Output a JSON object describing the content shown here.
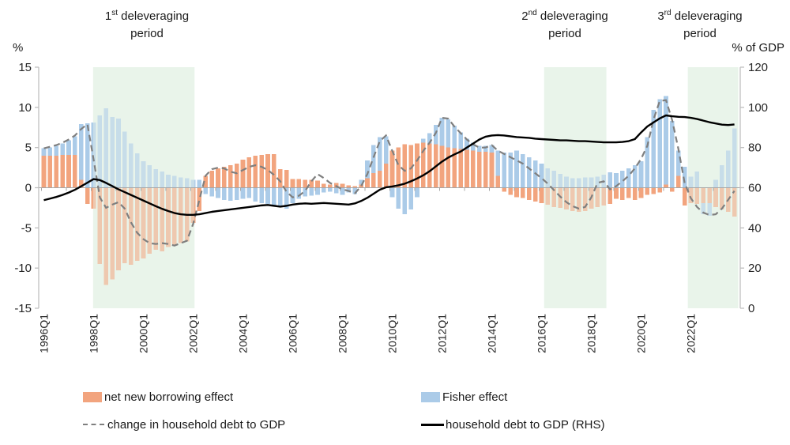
{
  "annotations": {
    "p1": {
      "num": "1",
      "sup": "st",
      "rest": " deleveraging",
      "line2": "period"
    },
    "p2": {
      "num": "2",
      "sup": "nd",
      "rest": " deleveraging",
      "line2": "period"
    },
    "p3": {
      "num": "3",
      "sup": "rd",
      "rest": " deleveraging",
      "line2": "period"
    }
  },
  "axes": {
    "left_unit": "%",
    "right_unit": "% of GDP",
    "left_ticks": [
      15,
      10,
      5,
      0,
      -5,
      -10,
      -15
    ],
    "right_ticks": [
      120,
      100,
      80,
      60,
      40,
      20,
      0
    ],
    "x_tick_labels": [
      "1996Q1",
      "1998Q1",
      "2000Q1",
      "2002Q1",
      "2004Q1",
      "2006Q1",
      "2008Q1",
      "2010Q1",
      "2012Q1",
      "2014Q1",
      "2016Q1",
      "2018Q1",
      "2020Q1",
      "2022Q1"
    ],
    "x_tick_positions": [
      0,
      8,
      16,
      24,
      32,
      40,
      48,
      56,
      64,
      72,
      80,
      88,
      96,
      104
    ]
  },
  "legend": {
    "borrowing": "net new borrowing effect",
    "fisher": "Fisher effect",
    "change": "change in household debt to GDP",
    "debt_rhs": "household debt to GDP (RHS)"
  },
  "colors": {
    "bar_borrowing": "#F2A47E",
    "bar_fisher": "#ABCBE8",
    "band": "#E9F5EA",
    "band_overlay": "rgba(233,245,234,0.45)",
    "dashed_line": "#7F7F7F",
    "solid_line": "#000000",
    "axis": "#BFBFBF",
    "zero_line": "#A6A6A6",
    "text": "#262626"
  },
  "chart_data": {
    "type": "bar",
    "subtype": "stacked bars with two overlay lines",
    "x": [
      "1996Q1",
      "1996Q2",
      "1996Q3",
      "1996Q4",
      "1997Q1",
      "1997Q2",
      "1997Q3",
      "1997Q4",
      "1998Q1",
      "1998Q2",
      "1998Q3",
      "1998Q4",
      "1999Q1",
      "1999Q2",
      "1999Q3",
      "1999Q4",
      "2000Q1",
      "2000Q2",
      "2000Q3",
      "2000Q4",
      "2001Q1",
      "2001Q2",
      "2001Q3",
      "2001Q4",
      "2002Q1",
      "2002Q2",
      "2002Q3",
      "2002Q4",
      "2003Q1",
      "2003Q2",
      "2003Q3",
      "2003Q4",
      "2004Q1",
      "2004Q2",
      "2004Q3",
      "2004Q4",
      "2005Q1",
      "2005Q2",
      "2005Q3",
      "2005Q4",
      "2006Q1",
      "2006Q2",
      "2006Q3",
      "2006Q4",
      "2007Q1",
      "2007Q2",
      "2007Q3",
      "2007Q4",
      "2008Q1",
      "2008Q2",
      "2008Q3",
      "2008Q4",
      "2009Q1",
      "2009Q2",
      "2009Q3",
      "2009Q4",
      "2010Q1",
      "2010Q2",
      "2010Q3",
      "2010Q4",
      "2011Q1",
      "2011Q2",
      "2011Q3",
      "2011Q4",
      "2012Q1",
      "2012Q2",
      "2012Q3",
      "2012Q4",
      "2013Q1",
      "2013Q2",
      "2013Q3",
      "2013Q4",
      "2014Q1",
      "2014Q2",
      "2014Q3",
      "2014Q4",
      "2015Q1",
      "2015Q2",
      "2015Q3",
      "2015Q4",
      "2016Q1",
      "2016Q2",
      "2016Q3",
      "2016Q4",
      "2017Q1",
      "2017Q2",
      "2017Q3",
      "2017Q4",
      "2018Q1",
      "2018Q2",
      "2018Q3",
      "2018Q4",
      "2019Q1",
      "2019Q2",
      "2019Q3",
      "2019Q4",
      "2020Q1",
      "2020Q2",
      "2020Q3",
      "2020Q4",
      "2021Q1",
      "2021Q2",
      "2021Q3",
      "2021Q4",
      "2022Q1",
      "2022Q2",
      "2022Q3",
      "2022Q4",
      "2023Q1",
      "2023Q2",
      "2023Q3",
      "2023Q4"
    ],
    "series": [
      {
        "name": "net new borrowing effect",
        "role": "bar_borrowing",
        "values": [
          4.0,
          4.0,
          4.0,
          4.1,
          4.1,
          4.1,
          1.0,
          -2.0,
          -2.6,
          -9.5,
          -12.1,
          -11.4,
          -10.3,
          -9.4,
          -9.6,
          -9.1,
          -8.8,
          -8.2,
          -7.7,
          -7.9,
          -7.4,
          -7.1,
          -6.9,
          -6.7,
          -4.4,
          -2.9,
          1.5,
          2.1,
          2.4,
          2.6,
          2.8,
          3.0,
          3.5,
          3.8,
          4.0,
          4.1,
          4.2,
          4.2,
          2.3,
          2.2,
          1.1,
          1.1,
          1.0,
          1.0,
          0.9,
          0.5,
          0.4,
          0.6,
          0.5,
          0.3,
          0.2,
          0.4,
          1.2,
          1.8,
          2.1,
          3.0,
          4.6,
          5.0,
          5.4,
          5.3,
          5.5,
          5.6,
          5.5,
          5.4,
          5.2,
          5.0,
          4.9,
          4.8,
          4.7,
          4.6,
          4.5,
          4.5,
          4.4,
          1.5,
          -0.5,
          -0.9,
          -1.2,
          -1.3,
          -1.5,
          -1.7,
          -1.9,
          -2.1,
          -2.4,
          -2.5,
          -2.7,
          -2.9,
          -3.0,
          -2.9,
          -2.6,
          -2.4,
          -2.2,
          -2.0,
          -1.4,
          -1.5,
          -1.3,
          -1.5,
          -1.3,
          -0.9,
          -0.8,
          -0.6,
          0.4,
          -0.5,
          1.5,
          -2.2,
          -1.9,
          -2.0,
          -1.9,
          -1.9,
          -2.4,
          -2.7,
          -3.0,
          -3.6
        ]
      },
      {
        "name": "Fisher effect",
        "role": "bar_fisher",
        "values": [
          0.9,
          1.0,
          1.2,
          1.4,
          1.8,
          2.3,
          6.9,
          8.0,
          8.1,
          9.0,
          9.9,
          8.8,
          8.6,
          7.0,
          5.5,
          4.3,
          3.3,
          2.8,
          2.3,
          2.0,
          1.6,
          1.5,
          1.3,
          1.2,
          1.0,
          1.0,
          -0.8,
          -1.1,
          -1.3,
          -1.5,
          -1.6,
          -1.5,
          -1.4,
          -1.3,
          -1.7,
          -1.9,
          -2.0,
          -2.2,
          -2.3,
          -2.6,
          -1.9,
          -1.4,
          -1.1,
          -1.0,
          -0.9,
          -0.6,
          -0.5,
          -0.7,
          -0.9,
          -0.6,
          -0.8,
          0.6,
          2.2,
          3.5,
          4.2,
          3.4,
          -1.2,
          -2.6,
          -3.3,
          -2.7,
          -1.2,
          0.5,
          1.3,
          2.4,
          3.5,
          3.5,
          2.8,
          2.1,
          1.4,
          1.0,
          0.7,
          0.7,
          0.9,
          3.1,
          4.4,
          4.4,
          4.6,
          4.2,
          3.8,
          3.4,
          3.0,
          2.4,
          2.1,
          1.7,
          1.4,
          1.2,
          1.2,
          1.3,
          1.3,
          1.4,
          1.6,
          1.9,
          1.8,
          2.1,
          2.4,
          2.8,
          3.3,
          6.3,
          9.7,
          11.0,
          11.0,
          8.3,
          3.1,
          2.6,
          1.4,
          2.0,
          -1.4,
          -1.6,
          1.0,
          2.8,
          4.6,
          7.4
        ]
      },
      {
        "name": "change in household debt to GDP",
        "role": "line_dashed",
        "axis": "left",
        "values": [
          4.9,
          5.1,
          5.3,
          5.6,
          6.0,
          6.5,
          7.3,
          7.9,
          3.5,
          -1.2,
          -2.5,
          -2.1,
          -1.8,
          -2.6,
          -4.3,
          -5.6,
          -6.4,
          -6.9,
          -7.0,
          -6.9,
          -7.0,
          -7.2,
          -6.9,
          -6.6,
          -4.5,
          -1.5,
          1.5,
          2.3,
          2.5,
          2.4,
          2.0,
          1.8,
          2.2,
          2.6,
          2.8,
          2.6,
          2.2,
          1.6,
          0.8,
          -0.5,
          -1.2,
          -1.0,
          -0.4,
          0.8,
          1.7,
          1.2,
          0.6,
          0.2,
          -0.2,
          -0.4,
          -0.7,
          0.2,
          1.7,
          3.8,
          5.8,
          6.5,
          4.6,
          2.8,
          2.1,
          2.4,
          3.4,
          4.6,
          5.6,
          6.8,
          8.7,
          8.6,
          7.6,
          6.8,
          6.0,
          5.4,
          5.0,
          5.0,
          5.3,
          4.6,
          4.2,
          3.8,
          3.4,
          3.0,
          2.4,
          1.8,
          1.2,
          0.5,
          -0.3,
          -1.1,
          -1.8,
          -2.3,
          -2.6,
          -2.4,
          -1.2,
          0.6,
          0.8,
          -0.2,
          0.2,
          0.8,
          1.5,
          2.4,
          3.6,
          5.2,
          8.5,
          10.8,
          10.9,
          8.4,
          4.8,
          0.6,
          -1.3,
          -2.4,
          -3.1,
          -3.4,
          -3.3,
          -2.6,
          -1.5,
          -0.4
        ]
      },
      {
        "name": "household debt to GDP (RHS)",
        "role": "line_solid",
        "axis": "right",
        "values": [
          53.8,
          54.6,
          55.4,
          56.4,
          57.6,
          59.0,
          60.7,
          62.5,
          64.3,
          63.8,
          62.4,
          60.8,
          59.2,
          57.8,
          56.4,
          55.0,
          53.6,
          52.2,
          50.8,
          49.5,
          48.4,
          47.4,
          46.8,
          46.5,
          46.5,
          46.8,
          47.4,
          48.0,
          48.4,
          48.8,
          49.2,
          49.6,
          50.0,
          50.4,
          50.8,
          51.2,
          51.4,
          51.0,
          50.6,
          51.0,
          51.6,
          52.0,
          52.2,
          52.0,
          52.2,
          52.4,
          52.2,
          52.0,
          51.8,
          51.6,
          52.2,
          53.4,
          55.0,
          57.0,
          59.0,
          60.2,
          60.6,
          61.2,
          62.0,
          63.2,
          64.6,
          66.2,
          68.2,
          70.6,
          73.0,
          75.0,
          76.6,
          78.0,
          80.0,
          82.0,
          84.0,
          85.4,
          86.0,
          86.2,
          86.0,
          85.6,
          85.2,
          85.0,
          84.8,
          84.4,
          84.2,
          84.0,
          83.8,
          83.6,
          83.6,
          83.4,
          83.2,
          83.2,
          83.0,
          82.8,
          82.6,
          82.6,
          82.6,
          82.8,
          83.2,
          84.2,
          87.5,
          90.5,
          92.5,
          94.5,
          96.0,
          95.6,
          95.3,
          95.2,
          94.8,
          94.2,
          93.4,
          92.6,
          92.0,
          91.4,
          91.2,
          91.5
        ]
      }
    ],
    "bands": [
      {
        "label": "1st deleveraging period",
        "from_q": 8.3,
        "to_q": 24.6
      },
      {
        "label": "2nd deleveraging period",
        "from_q": 80.8,
        "to_q": 90.8
      },
      {
        "label": "3rd deleveraging period",
        "from_q": 103.9,
        "to_q": 112.0
      }
    ],
    "title": "",
    "xlabel": "",
    "ylabel_left": "%",
    "ylabel_right": "% of GDP",
    "ylim_left": [
      -15,
      15
    ],
    "ylim_right": [
      0,
      120
    ],
    "grid": false,
    "legend_position": "bottom"
  }
}
